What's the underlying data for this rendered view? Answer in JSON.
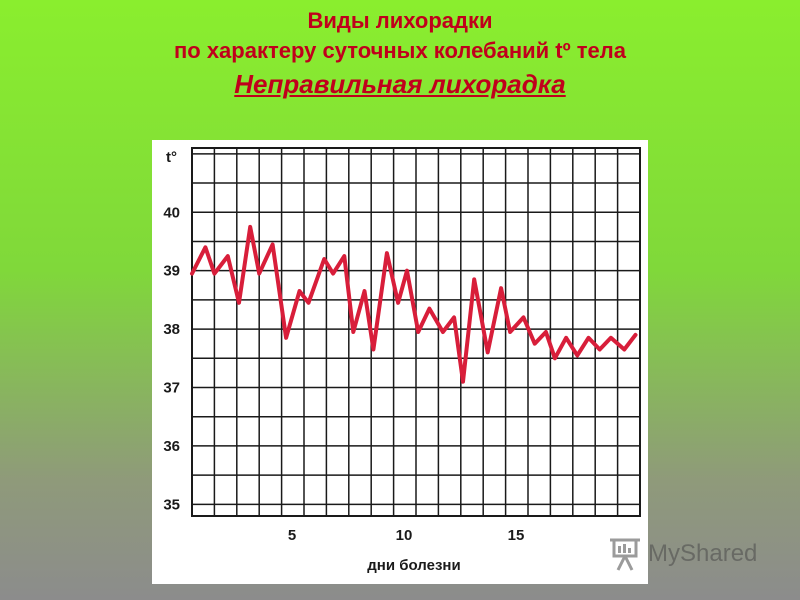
{
  "slide": {
    "title_line1": "Виды лихорадки",
    "title_line2": "по характеру суточных колебаний  tº тела",
    "title_line3": "Неправильная лихорадка"
  },
  "watermark": {
    "text": "MyShared",
    "icon": "presentation-board-icon"
  },
  "colors": {
    "line": "#d81e3a",
    "title": "#c0001c",
    "grid": "#1a1a1a"
  },
  "chart_data": {
    "type": "line",
    "title": "",
    "xlabel": "дни болезни",
    "ylabel": "t°",
    "ylim": [
      34.8,
      41.1
    ],
    "xlim": [
      0,
      20
    ],
    "y_ticks": [
      "35",
      "36",
      "37",
      "38",
      "39",
      "40"
    ],
    "x_ticks": [
      "5",
      "10",
      "15"
    ],
    "x_tick_values": [
      5,
      10,
      15
    ],
    "grid": true,
    "series": [
      {
        "x": [
          0.0,
          0.6,
          1.0,
          1.6,
          2.1,
          2.6,
          3.0,
          3.6,
          4.2,
          4.8,
          5.2,
          5.9,
          6.3,
          6.8,
          7.2,
          7.7,
          8.1,
          8.7,
          9.2,
          9.6,
          10.1,
          10.6,
          11.2,
          11.7,
          12.1,
          12.6,
          13.2,
          13.8,
          14.2,
          14.8,
          15.3,
          15.8,
          16.2,
          16.7,
          17.2,
          17.7,
          18.2,
          18.7,
          19.3,
          19.8
        ],
        "y": [
          38.95,
          39.4,
          38.95,
          39.25,
          38.45,
          39.75,
          38.95,
          39.45,
          37.85,
          38.65,
          38.45,
          39.2,
          38.95,
          39.25,
          37.95,
          38.65,
          37.65,
          39.3,
          38.45,
          39.0,
          37.95,
          38.35,
          37.95,
          38.2,
          37.1,
          38.85,
          37.6,
          38.7,
          37.95,
          38.2,
          37.75,
          37.95,
          37.5,
          37.85,
          37.55,
          37.85,
          37.65,
          37.85,
          37.65,
          37.9
        ]
      }
    ]
  }
}
